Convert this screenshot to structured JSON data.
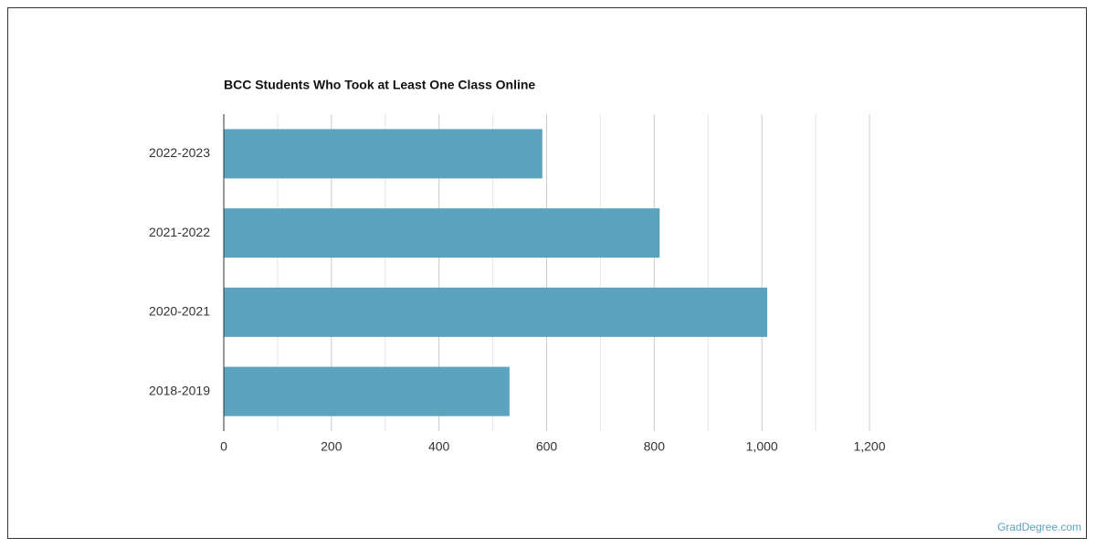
{
  "chart_data": {
    "type": "bar",
    "orientation": "horizontal",
    "title": "BCC Students Who Took at Least One Class Online",
    "categories": [
      "2022-2023",
      "2021-2022",
      "2020-2021",
      "2018-2019"
    ],
    "values": [
      592,
      810,
      1010,
      531
    ],
    "color": "#5ba3bf",
    "xlim": [
      0,
      1200
    ],
    "xticks": [
      0,
      200,
      400,
      600,
      800,
      {
        "value": 1000,
        "label": "1,000"
      },
      {
        "value": 1200,
        "label": "1,200"
      }
    ],
    "x_minor_ticks": [
      100,
      300,
      500,
      700,
      900,
      1100
    ],
    "grid": true,
    "source": "GradDegree.com"
  }
}
